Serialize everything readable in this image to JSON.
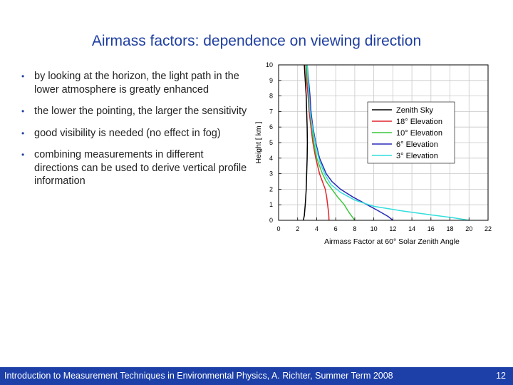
{
  "slide": {
    "title": "Airmass factors: dependence on viewing direction",
    "bullets": [
      "by looking at the horizon, the light path in the lower atmosphere is greatly enhanced",
      "the lower the pointing, the larger the sensitivity",
      "good visibility is needed (no effect in fog)",
      "combining measurements in different directions can be used to derive vertical profile information"
    ]
  },
  "footer": {
    "text": "Introduction to Measurement Techniques in Environmental Physics, A. Richter, Summer Term 2008",
    "page": "12"
  },
  "colors": {
    "title": "#1f3fa0",
    "footer_bg": "#1c3fa8"
  },
  "chart_data": {
    "type": "line",
    "xlabel": "Airmass Factor at 60° Solar Zenith Angle",
    "ylabel": "Height [ km ]",
    "xlim": [
      0,
      22
    ],
    "ylim": [
      0,
      10
    ],
    "xticks": [
      "0",
      "2",
      "4",
      "6",
      "8",
      "10",
      "12",
      "14",
      "16",
      "18",
      "20",
      "22"
    ],
    "yticks": [
      "0",
      "1",
      "2",
      "3",
      "4",
      "5",
      "6",
      "7",
      "8",
      "9",
      "10"
    ],
    "grid": true,
    "legend_position": "right",
    "series": [
      {
        "name": "Zenith Sky",
        "color": "#000000",
        "points": [
          [
            2.6,
            0
          ],
          [
            2.7,
            0.3
          ],
          [
            2.8,
            1.0
          ],
          [
            2.9,
            2.0
          ],
          [
            2.95,
            3.0
          ],
          [
            3.0,
            4.0
          ],
          [
            3.02,
            5.0
          ],
          [
            3.0,
            6.0
          ],
          [
            2.95,
            7.0
          ],
          [
            2.9,
            8.0
          ],
          [
            2.8,
            9.0
          ],
          [
            2.7,
            10.0
          ]
        ]
      },
      {
        "name": "18° Elevation",
        "color": "#e0262c",
        "points": [
          [
            5.3,
            0
          ],
          [
            5.25,
            0.5
          ],
          [
            5.15,
            1.0
          ],
          [
            5.05,
            1.5
          ],
          [
            4.9,
            2.0
          ],
          [
            4.6,
            2.5
          ],
          [
            4.3,
            3.0
          ],
          [
            3.9,
            4.0
          ],
          [
            3.6,
            5.0
          ],
          [
            3.4,
            6.0
          ],
          [
            3.2,
            7.0
          ],
          [
            3.1,
            8.0
          ],
          [
            2.95,
            9.0
          ],
          [
            2.85,
            10.0
          ]
        ]
      },
      {
        "name": "10° Elevation",
        "color": "#3cc83c",
        "points": [
          [
            8.0,
            0
          ],
          [
            7.4,
            0.5
          ],
          [
            6.9,
            1.0
          ],
          [
            6.2,
            1.5
          ],
          [
            5.6,
            2.0
          ],
          [
            5.0,
            2.5
          ],
          [
            4.6,
            3.0
          ],
          [
            4.0,
            4.0
          ],
          [
            3.7,
            5.0
          ],
          [
            3.5,
            6.0
          ],
          [
            3.3,
            7.0
          ],
          [
            3.2,
            8.0
          ],
          [
            3.05,
            9.0
          ],
          [
            2.9,
            10.0
          ]
        ]
      },
      {
        "name": "6° Elevation",
        "color": "#2a2ab8",
        "points": [
          [
            12.0,
            0
          ],
          [
            11.5,
            0.25
          ],
          [
            10.5,
            0.6
          ],
          [
            9.3,
            1.0
          ],
          [
            7.8,
            1.5
          ],
          [
            6.5,
            2.0
          ],
          [
            5.6,
            2.5
          ],
          [
            5.0,
            3.0
          ],
          [
            4.3,
            4.0
          ],
          [
            3.9,
            5.0
          ],
          [
            3.6,
            6.0
          ],
          [
            3.4,
            7.0
          ],
          [
            3.3,
            8.0
          ],
          [
            3.15,
            9.0
          ],
          [
            3.0,
            10.0
          ]
        ]
      },
      {
        "name": "3° Elevation",
        "color": "#33dede",
        "points": [
          [
            20.0,
            0
          ],
          [
            18.5,
            0.15
          ],
          [
            16.0,
            0.35
          ],
          [
            13.0,
            0.6
          ],
          [
            10.0,
            0.9
          ],
          [
            8.0,
            1.3
          ],
          [
            6.5,
            1.8
          ],
          [
            5.5,
            2.3
          ],
          [
            4.9,
            2.9
          ],
          [
            4.3,
            3.8
          ],
          [
            3.9,
            4.8
          ],
          [
            3.6,
            5.8
          ],
          [
            3.3,
            7.0
          ],
          [
            3.2,
            8.0
          ],
          [
            3.1,
            9.0
          ],
          [
            3.0,
            10.0
          ]
        ]
      }
    ]
  }
}
